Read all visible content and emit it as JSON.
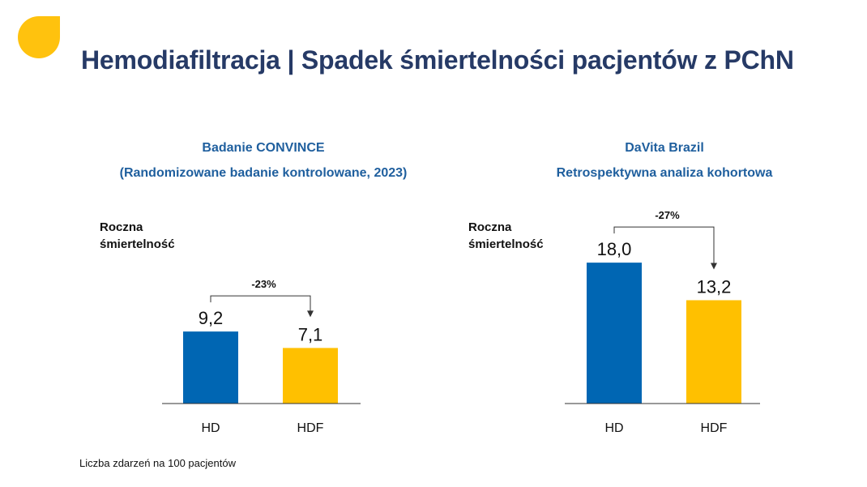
{
  "title": "Hemodiafiltracja | Spadek śmiertelności pacjentów z PChN",
  "footnote": "Liczba zdarzeń na 100 pacjentów",
  "colors": {
    "hd": "#0066b3",
    "hdf": "#ffc000",
    "title": "#263a66",
    "heading": "#1f5f9e",
    "logo": "#ffc20e"
  },
  "panels": [
    {
      "heading1": "Badanie CONVINCE",
      "heading2": "(Randomizowane badanie kontrolowane, 2023)",
      "ylabel": [
        "Roczna",
        "śmiertelność"
      ]
    },
    {
      "heading1": "DaVita Brazil",
      "heading2": "Retrospektywna analiza kohortowa",
      "ylabel": [
        "Roczna",
        "śmiertelność"
      ]
    }
  ],
  "chart_data": [
    {
      "type": "bar",
      "title": "Badanie CONVINCE",
      "subtitle": "(Randomizowane badanie kontrolowane, 2023)",
      "ylabel": "Roczna śmiertelność",
      "categories": [
        "HD",
        "HDF"
      ],
      "values": [
        9.2,
        7.1
      ],
      "value_labels": [
        "9,2",
        "7,1"
      ],
      "annotation": "-23%",
      "ylim": [
        0,
        25
      ]
    },
    {
      "type": "bar",
      "title": "DaVita Brazil",
      "subtitle": "Retrospektywna analiza kohortowa",
      "ylabel": "Roczna śmiertelność",
      "categories": [
        "HD",
        "HDF"
      ],
      "values": [
        18.0,
        13.2
      ],
      "value_labels": [
        "18,0",
        "13,2"
      ],
      "annotation": "-27%",
      "ylim": [
        0,
        25
      ]
    }
  ]
}
